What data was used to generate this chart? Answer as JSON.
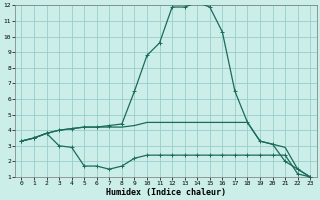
{
  "xlabel": "Humidex (Indice chaleur)",
  "bg_color": "#cceee8",
  "grid_color": "#99cccc",
  "line_color": "#1a6b5a",
  "xlim": [
    -0.5,
    23.5
  ],
  "ylim": [
    1,
    12
  ],
  "xticks": [
    0,
    1,
    2,
    3,
    4,
    5,
    6,
    7,
    8,
    9,
    10,
    11,
    12,
    13,
    14,
    15,
    16,
    17,
    18,
    19,
    20,
    21,
    22,
    23
  ],
  "yticks": [
    1,
    2,
    3,
    4,
    5,
    6,
    7,
    8,
    9,
    10,
    11,
    12
  ],
  "line1_x": [
    0,
    1,
    2,
    3,
    4,
    5,
    6,
    7,
    8,
    9,
    10,
    11,
    12,
    13,
    14,
    15,
    16,
    17,
    18,
    19,
    20,
    21,
    22,
    23
  ],
  "line1_y": [
    3.3,
    3.5,
    3.8,
    4.0,
    4.1,
    4.2,
    4.2,
    4.2,
    4.2,
    4.3,
    4.5,
    4.5,
    4.5,
    4.5,
    4.5,
    4.5,
    4.5,
    4.5,
    4.5,
    3.3,
    3.1,
    2.9,
    1.5,
    1.0
  ],
  "line2_x": [
    0,
    1,
    2,
    3,
    4,
    5,
    6,
    7,
    8,
    9,
    10,
    11,
    12,
    13,
    14,
    15,
    16,
    17,
    18,
    19,
    20,
    21,
    22,
    23
  ],
  "line2_y": [
    3.3,
    3.5,
    3.8,
    3.0,
    2.9,
    1.7,
    1.7,
    1.5,
    1.7,
    2.2,
    2.4,
    2.4,
    2.4,
    2.4,
    2.4,
    2.4,
    2.4,
    2.4,
    2.4,
    2.4,
    2.4,
    2.4,
    1.2,
    1.0
  ],
  "line3_x": [
    0,
    1,
    2,
    3,
    4,
    5,
    6,
    7,
    8,
    9,
    10,
    11,
    12,
    13,
    14,
    15,
    16,
    17,
    18,
    19,
    20,
    21,
    22,
    23
  ],
  "line3_y": [
    3.3,
    3.5,
    3.8,
    4.0,
    4.1,
    4.2,
    4.2,
    4.3,
    4.4,
    6.5,
    8.8,
    9.6,
    11.9,
    11.9,
    12.2,
    11.9,
    10.3,
    6.5,
    4.5,
    3.3,
    3.1,
    2.0,
    1.5,
    1.0
  ]
}
